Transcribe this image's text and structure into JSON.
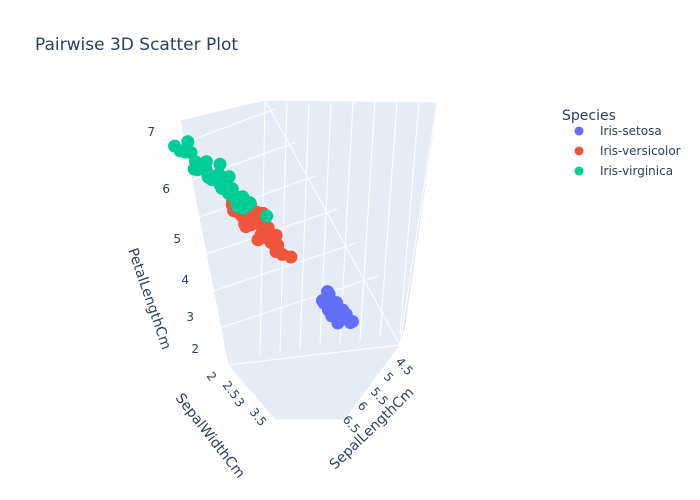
{
  "chart_data": {
    "type": "scatter",
    "dimensions": 3,
    "title": "Pairwise 3D Scatter Plot",
    "axes": {
      "x": {
        "label": "SepalLengthCm",
        "ticks": [
          "4.5",
          "5",
          "5.5",
          "6",
          "6.5"
        ]
      },
      "y": {
        "label": "SepalWidthCm",
        "ticks": [
          "2",
          "2.5",
          "3",
          "3.5"
        ]
      },
      "z": {
        "label": "PetalLengthCm",
        "ticks": [
          "2",
          "3",
          "4",
          "5",
          "6",
          "7"
        ],
        "range": [
          1,
          7
        ]
      }
    },
    "legend": {
      "title": "Species",
      "placement": "top-right"
    },
    "colors": {
      "Iris-setosa": "#636efa",
      "Iris-versicolor": "#ef553b",
      "Iris-virginica": "#00cc96"
    },
    "series": [
      {
        "name": "Iris-setosa",
        "color": "#636efa",
        "points": [
          [
            5.1,
            3.5,
            1.4
          ],
          [
            4.9,
            3.0,
            1.4
          ],
          [
            4.7,
            3.2,
            1.3
          ],
          [
            4.6,
            3.1,
            1.5
          ],
          [
            5.0,
            3.6,
            1.4
          ],
          [
            5.4,
            3.9,
            1.7
          ],
          [
            4.6,
            3.4,
            1.4
          ],
          [
            5.0,
            3.4,
            1.5
          ],
          [
            4.4,
            2.9,
            1.4
          ],
          [
            4.9,
            3.1,
            1.5
          ],
          [
            5.4,
            3.7,
            1.5
          ],
          [
            4.8,
            3.4,
            1.6
          ],
          [
            4.8,
            3.0,
            1.4
          ],
          [
            4.3,
            3.0,
            1.1
          ],
          [
            5.8,
            4.0,
            1.2
          ],
          [
            5.7,
            4.4,
            1.5
          ],
          [
            5.4,
            3.9,
            1.3
          ],
          [
            5.1,
            3.5,
            1.4
          ],
          [
            5.7,
            3.8,
            1.7
          ],
          [
            5.1,
            3.8,
            1.5
          ],
          [
            5.4,
            3.4,
            1.7
          ],
          [
            5.1,
            3.7,
            1.5
          ],
          [
            4.6,
            3.6,
            1.0
          ],
          [
            5.1,
            3.3,
            1.7
          ],
          [
            4.8,
            3.4,
            1.9
          ],
          [
            5.0,
            3.0,
            1.6
          ],
          [
            5.0,
            3.4,
            1.6
          ],
          [
            5.2,
            3.5,
            1.5
          ],
          [
            5.2,
            3.4,
            1.4
          ],
          [
            4.7,
            3.2,
            1.6
          ],
          [
            4.8,
            3.1,
            1.6
          ],
          [
            5.4,
            3.4,
            1.5
          ],
          [
            5.2,
            4.1,
            1.5
          ],
          [
            5.5,
            4.2,
            1.4
          ],
          [
            5.0,
            3.2,
            1.2
          ],
          [
            5.5,
            3.5,
            1.3
          ],
          [
            4.4,
            3.0,
            1.3
          ],
          [
            5.1,
            3.4,
            1.5
          ],
          [
            5.0,
            3.5,
            1.3
          ],
          [
            4.5,
            2.3,
            1.3
          ],
          [
            4.4,
            3.2,
            1.3
          ],
          [
            5.0,
            3.5,
            1.6
          ],
          [
            5.1,
            3.8,
            1.9
          ],
          [
            4.8,
            3.0,
            1.4
          ],
          [
            5.3,
            3.7,
            1.5
          ]
        ]
      },
      {
        "name": "Iris-versicolor",
        "color": "#ef553b",
        "points": [
          [
            7.0,
            3.2,
            4.7
          ],
          [
            6.4,
            3.2,
            4.5
          ],
          [
            6.9,
            3.1,
            4.9
          ],
          [
            5.5,
            2.3,
            4.0
          ],
          [
            6.5,
            2.8,
            4.6
          ],
          [
            5.7,
            2.8,
            4.5
          ],
          [
            6.3,
            3.3,
            4.7
          ],
          [
            4.9,
            2.4,
            3.3
          ],
          [
            6.6,
            2.9,
            4.6
          ],
          [
            5.2,
            2.7,
            3.9
          ],
          [
            5.0,
            2.0,
            3.5
          ],
          [
            5.9,
            3.0,
            4.2
          ],
          [
            6.0,
            2.2,
            4.0
          ],
          [
            6.1,
            2.9,
            4.7
          ],
          [
            5.6,
            2.9,
            3.6
          ],
          [
            6.7,
            3.1,
            4.4
          ],
          [
            5.6,
            3.0,
            4.5
          ],
          [
            5.8,
            2.7,
            4.1
          ],
          [
            6.2,
            2.2,
            4.5
          ],
          [
            5.6,
            2.5,
            3.9
          ],
          [
            5.9,
            3.2,
            4.8
          ],
          [
            6.1,
            2.8,
            4.0
          ],
          [
            6.3,
            2.5,
            4.9
          ],
          [
            6.4,
            2.9,
            4.3
          ],
          [
            6.6,
            3.0,
            4.4
          ],
          [
            6.8,
            2.8,
            4.8
          ],
          [
            6.7,
            3.0,
            5.0
          ],
          [
            6.0,
            2.9,
            4.5
          ],
          [
            5.7,
            2.6,
            3.5
          ],
          [
            5.5,
            2.4,
            3.8
          ],
          [
            5.8,
            2.7,
            3.9
          ],
          [
            6.0,
            2.7,
            5.1
          ],
          [
            5.4,
            3.0,
            4.5
          ],
          [
            6.0,
            3.4,
            4.5
          ],
          [
            6.7,
            3.1,
            4.7
          ],
          [
            6.3,
            2.3,
            4.4
          ],
          [
            5.6,
            3.0,
            4.1
          ],
          [
            5.5,
            2.5,
            4.0
          ],
          [
            6.1,
            3.0,
            4.6
          ],
          [
            5.8,
            2.6,
            4.0
          ]
        ]
      },
      {
        "name": "Iris-virginica",
        "color": "#00cc96",
        "points": [
          [
            6.3,
            3.3,
            6.0
          ],
          [
            5.8,
            2.7,
            5.1
          ],
          [
            7.1,
            3.0,
            5.9
          ],
          [
            6.3,
            2.9,
            5.6
          ],
          [
            6.5,
            3.0,
            5.8
          ],
          [
            7.6,
            3.0,
            6.6
          ],
          [
            4.9,
            2.5,
            4.5
          ],
          [
            7.3,
            2.9,
            6.3
          ],
          [
            6.7,
            2.5,
            5.8
          ],
          [
            7.2,
            3.6,
            6.1
          ],
          [
            6.5,
            3.2,
            5.1
          ],
          [
            6.4,
            2.7,
            5.3
          ],
          [
            6.8,
            3.0,
            5.5
          ],
          [
            5.7,
            2.5,
            5.0
          ],
          [
            5.8,
            2.8,
            5.1
          ],
          [
            6.4,
            3.2,
            5.3
          ],
          [
            6.5,
            3.0,
            5.5
          ],
          [
            7.7,
            3.8,
            6.7
          ],
          [
            7.7,
            2.6,
            6.9
          ],
          [
            6.0,
            2.2,
            5.0
          ],
          [
            6.9,
            3.2,
            5.7
          ],
          [
            5.6,
            2.8,
            4.9
          ],
          [
            7.7,
            2.8,
            6.7
          ],
          [
            6.3,
            2.7,
            4.9
          ],
          [
            6.7,
            3.3,
            5.7
          ],
          [
            7.2,
            3.2,
            6.0
          ],
          [
            6.2,
            2.8,
            4.8
          ],
          [
            6.1,
            3.0,
            4.9
          ],
          [
            6.4,
            2.8,
            5.6
          ],
          [
            7.2,
            3.0,
            5.8
          ],
          [
            7.4,
            2.8,
            6.1
          ],
          [
            7.9,
            3.8,
            6.4
          ],
          [
            6.3,
            2.8,
            5.1
          ],
          [
            6.1,
            2.6,
            5.6
          ],
          [
            7.7,
            3.0,
            6.1
          ],
          [
            6.3,
            3.4,
            5.6
          ],
          [
            6.0,
            3.0,
            4.8
          ],
          [
            6.9,
            3.1,
            5.4
          ],
          [
            6.7,
            3.1,
            5.6
          ],
          [
            5.8,
            2.7,
            5.1
          ]
        ]
      }
    ]
  }
}
